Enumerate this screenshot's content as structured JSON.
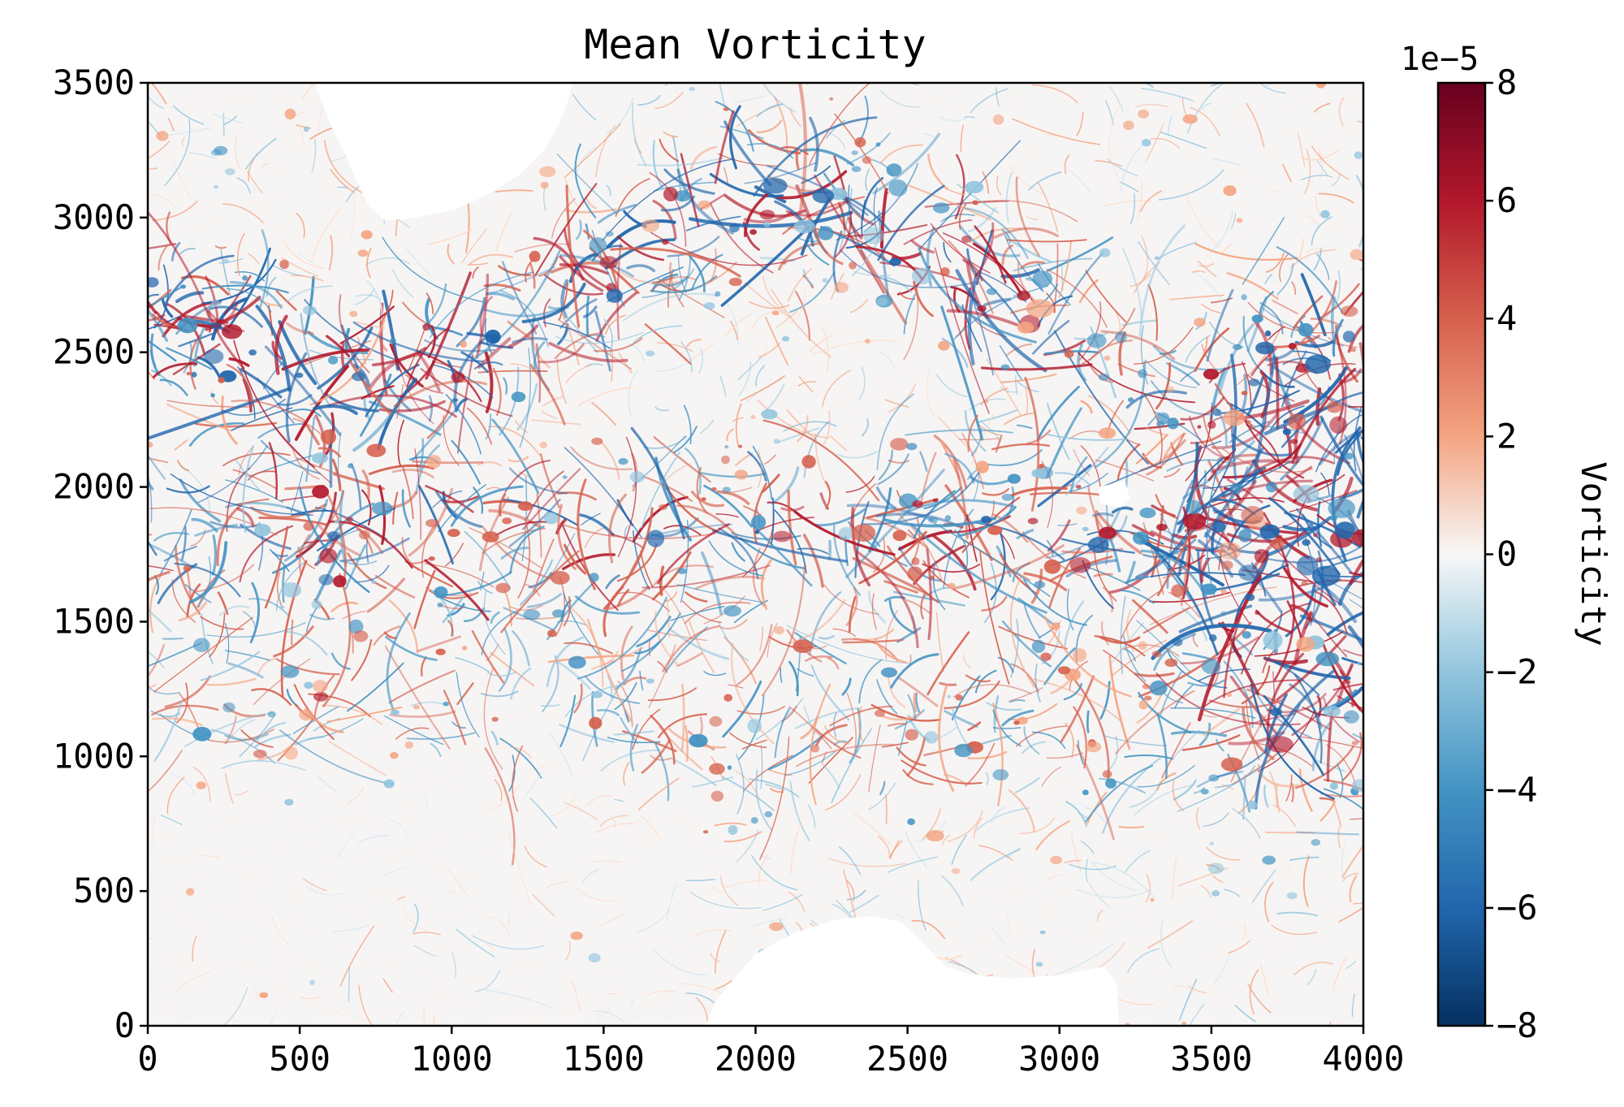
{
  "chart_data": {
    "type": "heatmap",
    "title": "Mean Vorticity",
    "xlabel": "",
    "ylabel": "",
    "xlim": [
      0,
      4000
    ],
    "ylim": [
      0,
      3500
    ],
    "x_ticks": [
      0,
      500,
      1000,
      1500,
      2000,
      2500,
      3000,
      3500,
      4000
    ],
    "y_ticks": [
      0,
      500,
      1000,
      1500,
      2000,
      2500,
      3000,
      3500
    ],
    "x_tick_labels": [
      "0",
      "500",
      "1000",
      "1500",
      "2000",
      "2500",
      "3000",
      "3500",
      "4000"
    ],
    "y_tick_labels": [
      "0",
      "500",
      "1000",
      "1500",
      "2000",
      "2500",
      "3000",
      "3500"
    ],
    "colormap": "RdBu_r",
    "colors": {
      "negative_max": "#053061",
      "negative_mid": "#4393c3",
      "negative_low": "#d1e5f0",
      "zero": "#f7f7f7",
      "positive_low": "#fddbc7",
      "positive_mid": "#d6604d",
      "positive_max": "#67001f"
    },
    "colorbar": {
      "label": "Vorticity",
      "scale_label": "1e−5",
      "range": [
        -8,
        8
      ],
      "ticks": [
        8,
        6,
        4,
        2,
        0,
        -2,
        -4,
        -6,
        -8
      ],
      "tick_labels": [
        "8",
        "6",
        "4",
        "2",
        "0",
        "−2",
        "−4",
        "−6",
        "−8"
      ]
    },
    "grid": false,
    "notes_visible": []
  }
}
